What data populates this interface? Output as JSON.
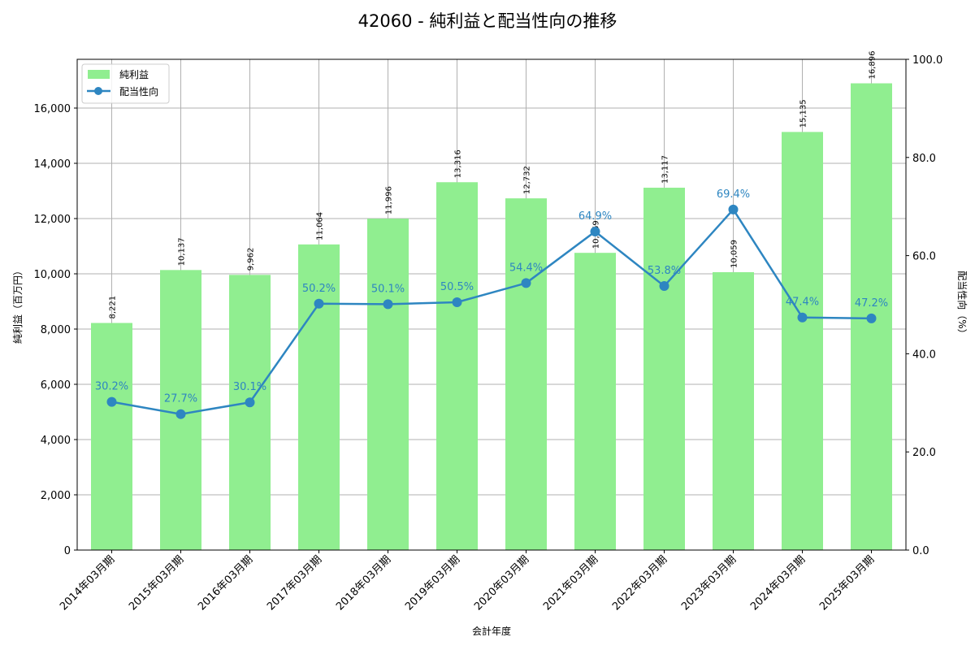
{
  "chart_data": {
    "type": "bar+line",
    "title": "42060 - 純利益と配当性向の推移",
    "xlabel": "会計年度",
    "ylabel_left": "純利益（百万円）",
    "ylabel_right": "配当性向（%）",
    "categories": [
      "2014年03月期",
      "2015年03月期",
      "2016年03月期",
      "2017年03月期",
      "2018年03月期",
      "2019年03月期",
      "2020年03月期",
      "2021年03月期",
      "2022年03月期",
      "2023年03月期",
      "2024年03月期",
      "2025年03月期"
    ],
    "series": [
      {
        "name": "純利益",
        "type": "bar",
        "axis": "left",
        "color": "#90ee90",
        "values": [
          8221,
          10137,
          9962,
          11064,
          11996,
          13316,
          12732,
          10759,
          13117,
          10059,
          15135,
          16896
        ],
        "labels": [
          "8,221",
          "10,137",
          "9,962",
          "11,064",
          "11,996",
          "13,316",
          "12,732",
          "10,759",
          "13,117",
          "10,059",
          "15,135",
          "16,896"
        ]
      },
      {
        "name": "配当性向",
        "type": "line",
        "axis": "right",
        "color": "#2e86c1",
        "values": [
          30.2,
          27.7,
          30.1,
          50.2,
          50.1,
          50.5,
          54.4,
          64.9,
          53.8,
          69.4,
          47.4,
          47.2
        ],
        "labels": [
          "30.2%",
          "27.7%",
          "30.1%",
          "50.2%",
          "50.1%",
          "50.5%",
          "54.4%",
          "64.9%",
          "53.8%",
          "69.4%",
          "47.4%",
          "47.2%"
        ]
      }
    ],
    "ylim_left": [
      0,
      17765
    ],
    "yticks_left": [
      "0",
      "2,000",
      "4,000",
      "6,000",
      "8,000",
      "10,000",
      "12,000",
      "14,000",
      "16,000"
    ],
    "ylim_right": [
      0,
      100
    ],
    "yticks_right": [
      "0.0",
      "20.0",
      "40.0",
      "60.0",
      "80.0",
      "100.0"
    ],
    "grid": true,
    "legend_position": "upper left"
  }
}
